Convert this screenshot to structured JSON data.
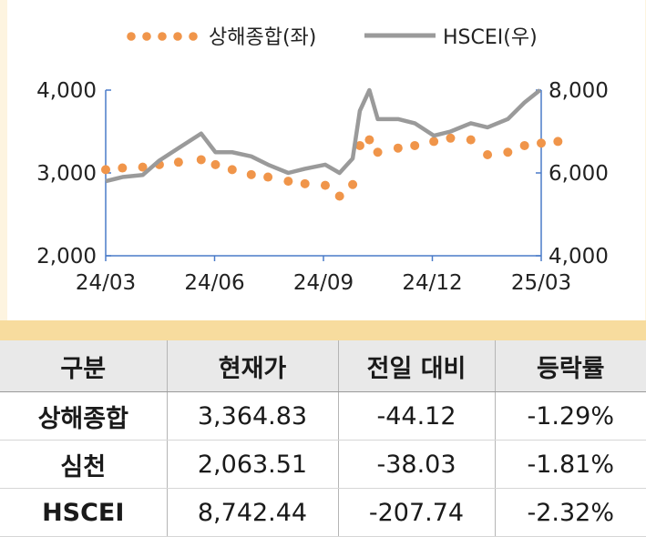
{
  "chart_data": {
    "type": "line",
    "series": [
      {
        "name": "상해종합(좌)",
        "axis": "left",
        "style": "dotted",
        "color": "#f0954a",
        "x": [
          "2024-03-01",
          "2024-03-15",
          "2024-04-01",
          "2024-04-15",
          "2024-05-01",
          "2024-05-20",
          "2024-06-01",
          "2024-06-15",
          "2024-07-01",
          "2024-07-15",
          "2024-08-01",
          "2024-08-15",
          "2024-09-01",
          "2024-09-13",
          "2024-09-24",
          "2024-09-30",
          "2024-10-08",
          "2024-10-15",
          "2024-11-01",
          "2024-11-15",
          "2024-12-01",
          "2024-12-15",
          "2025-01-01",
          "2025-01-15",
          "2025-02-01",
          "2025-02-15",
          "2025-03-01",
          "2025-03-15"
        ],
        "values": [
          3040,
          3060,
          3070,
          3100,
          3130,
          3160,
          3100,
          3040,
          2980,
          2950,
          2900,
          2870,
          2850,
          2720,
          2860,
          3330,
          3400,
          3250,
          3300,
          3330,
          3380,
          3420,
          3400,
          3220,
          3250,
          3330,
          3360,
          3380
        ]
      },
      {
        "name": "HSCEI(우)",
        "axis": "right",
        "style": "solid",
        "color": "#9a9a9a",
        "x": [
          "2024-03-01",
          "2024-03-15",
          "2024-04-01",
          "2024-04-15",
          "2024-05-01",
          "2024-05-20",
          "2024-06-01",
          "2024-06-15",
          "2024-07-01",
          "2024-07-15",
          "2024-08-01",
          "2024-08-15",
          "2024-09-01",
          "2024-09-13",
          "2024-09-24",
          "2024-09-30",
          "2024-10-08",
          "2024-10-15",
          "2024-11-01",
          "2024-11-15",
          "2024-12-01",
          "2024-12-15",
          "2025-01-01",
          "2025-01-15",
          "2025-02-01",
          "2025-02-15",
          "2025-02-28"
        ],
        "values": [
          5800,
          5900,
          5950,
          6300,
          6600,
          6950,
          6500,
          6500,
          6400,
          6200,
          6000,
          6100,
          6200,
          6000,
          6350,
          7500,
          8000,
          7300,
          7300,
          7200,
          6900,
          7000,
          7200,
          7100,
          7300,
          7700,
          8000
        ]
      }
    ],
    "xlim": [
      "2024-03-01",
      "2025-03-01"
    ],
    "x_ticks": [
      "24/03",
      "24/06",
      "24/09",
      "24/12",
      "25/03"
    ],
    "y_left": {
      "lim": [
        2000,
        4000
      ],
      "ticks": [
        "2,000",
        "3,000",
        "4,000"
      ]
    },
    "y_right": {
      "lim": [
        4000,
        8000
      ],
      "ticks": [
        "4,000",
        "6,000",
        "8,000"
      ]
    },
    "legend": {
      "position": "top-center",
      "items": [
        "상해종합(좌)",
        "HSCEI(우)"
      ]
    },
    "grid": false,
    "colors": {
      "axis": "#4a7bc8",
      "shanghai": "#f0954a",
      "hscei": "#9a9a9a"
    }
  },
  "table": {
    "headers": [
      "구분",
      "현재가",
      "전일 대비",
      "등락률"
    ],
    "rows": [
      [
        "상해종합",
        "3,364.83",
        "-44.12",
        "-1.29%"
      ],
      [
        "심천",
        "2,063.51",
        "-38.03",
        "-1.81%"
      ],
      [
        "HSCEI",
        "8,742.44",
        "-207.74",
        "-2.32%"
      ]
    ]
  }
}
